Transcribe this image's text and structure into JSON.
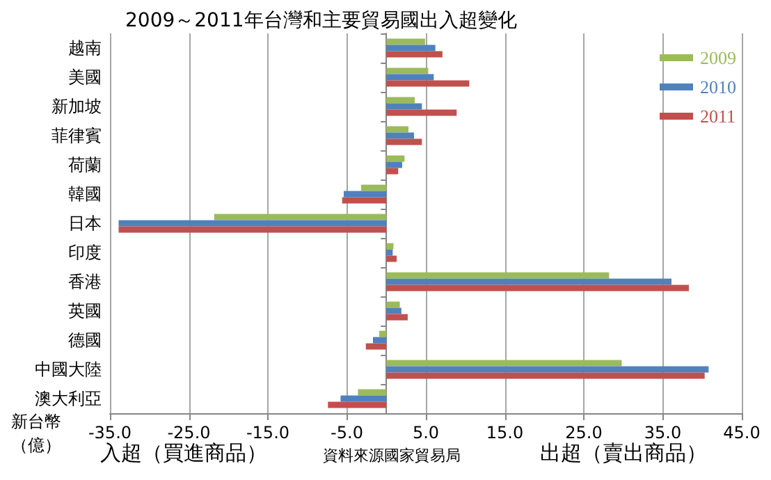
{
  "chart_data": {
    "type": "bar",
    "orientation": "horizontal",
    "title": "2009～2011年台灣和主要貿易國出入超變化",
    "categories": [
      "越南",
      "美國",
      "新加坡",
      "菲律賓",
      "荷蘭",
      "韓國",
      "日本",
      "印度",
      "香港",
      "英國",
      "德國",
      "中國大陸",
      "澳大利亞"
    ],
    "series": [
      {
        "name": "2009",
        "color": "#9bbb59",
        "values": [
          4.9,
          5.3,
          3.6,
          2.8,
          2.3,
          -3.2,
          -21.8,
          0.9,
          28.2,
          1.7,
          -0.9,
          29.8,
          -3.6
        ]
      },
      {
        "name": "2010",
        "color": "#4f81bd",
        "values": [
          6.2,
          6.0,
          4.5,
          3.5,
          2.0,
          -5.4,
          -33.9,
          0.8,
          36.1,
          1.9,
          -1.7,
          40.8,
          -5.8
        ]
      },
      {
        "name": "2011",
        "color": "#c0504d",
        "values": [
          7.1,
          10.5,
          8.9,
          4.5,
          1.5,
          -5.6,
          -33.9,
          1.3,
          38.3,
          2.7,
          -2.6,
          40.3,
          -7.4
        ]
      }
    ],
    "xlim": [
      -35,
      45
    ],
    "xticks": [
      {
        "value": -35,
        "label": "-35.0"
      },
      {
        "value": -25,
        "label": "-25.0"
      },
      {
        "value": -15,
        "label": "-15.0"
      },
      {
        "value": -5,
        "label": "-5.0"
      },
      {
        "value": 5,
        "label": "5.0"
      },
      {
        "value": 15,
        "label": "15.0"
      },
      {
        "value": 25,
        "label": "25.0"
      },
      {
        "value": 35,
        "label": "35.0"
      },
      {
        "value": 45,
        "label": "45.0"
      }
    ],
    "grid": "x",
    "legend": "top right",
    "annotations": [
      "新台幣",
      "（億）",
      "入超（買進商品）",
      "資料來源國家貿易局",
      "出超（賣出商品）"
    ]
  }
}
